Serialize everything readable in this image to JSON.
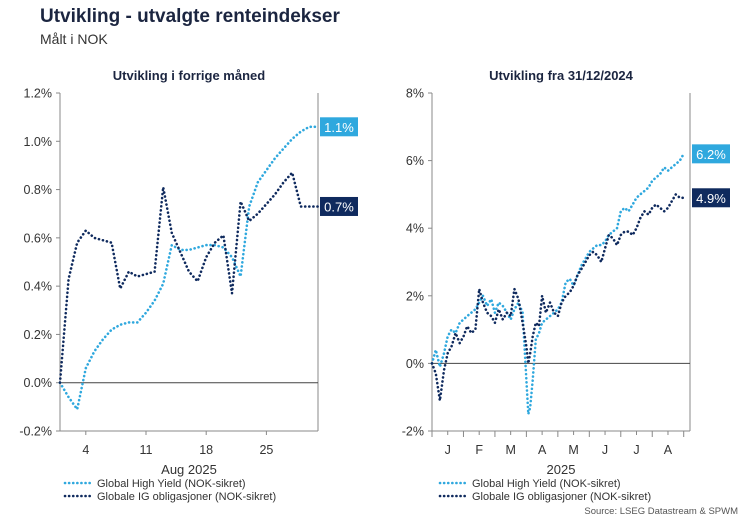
{
  "header": {
    "title": "Utvikling - utvalgte renteindekser",
    "subtitle": "Målt i NOK",
    "source": "Source: LSEG Datastream & SPWM"
  },
  "colors": {
    "high_yield": "#2fa8de",
    "ig": "#0f2a5e",
    "axis": "#555555"
  },
  "chart_data": [
    {
      "type": "line",
      "title": "Utvikling i forrige måned",
      "xlabel": "Aug 2025",
      "xticks": [
        {
          "x": 4,
          "label": "4"
        },
        {
          "x": 11,
          "label": "11"
        },
        {
          "x": 18,
          "label": "18"
        },
        {
          "x": 25,
          "label": "25"
        }
      ],
      "yticks": [
        "-0.2%",
        "0.0%",
        "0.2%",
        "0.4%",
        "0.6%",
        "0.8%",
        "1.0%",
        "1.2%"
      ],
      "xlim": [
        1,
        31
      ],
      "ylim": [
        -0.2,
        1.2
      ],
      "legend_position": "bottom",
      "series": [
        {
          "name": "Global High Yield (NOK-sikret)",
          "end_label": "1.1%",
          "x": [
            1,
            2,
            3,
            4,
            5,
            6,
            7,
            8,
            9,
            10,
            11,
            12,
            13,
            14,
            15,
            16,
            17,
            18,
            19,
            20,
            21,
            22,
            23,
            24,
            25,
            26,
            27,
            28,
            29,
            30,
            31
          ],
          "values": [
            0.0,
            -0.06,
            -0.11,
            0.06,
            0.13,
            0.18,
            0.22,
            0.24,
            0.25,
            0.25,
            0.29,
            0.34,
            0.41,
            0.57,
            0.55,
            0.55,
            0.56,
            0.57,
            0.57,
            0.56,
            0.52,
            0.44,
            0.73,
            0.83,
            0.88,
            0.93,
            0.97,
            1.01,
            1.04,
            1.06,
            1.06
          ]
        },
        {
          "name": "Globale IG obligasjoner (NOK-sikret)",
          "end_label": "0.7%",
          "x": [
            1,
            2,
            3,
            4,
            5,
            6,
            7,
            8,
            9,
            10,
            11,
            12,
            13,
            14,
            15,
            16,
            17,
            18,
            19,
            20,
            21,
            22,
            23,
            24,
            25,
            26,
            27,
            28,
            29,
            30,
            31
          ],
          "values": [
            0.0,
            0.43,
            0.58,
            0.63,
            0.6,
            0.59,
            0.58,
            0.39,
            0.46,
            0.44,
            0.45,
            0.46,
            0.81,
            0.62,
            0.54,
            0.46,
            0.42,
            0.52,
            0.58,
            0.61,
            0.37,
            0.75,
            0.67,
            0.7,
            0.74,
            0.78,
            0.83,
            0.87,
            0.73,
            0.73,
            0.73
          ]
        }
      ]
    },
    {
      "type": "line",
      "title": "Utvikling fra 31/12/2024",
      "xlabel": "2025",
      "xticks": [
        {
          "x": 0.5,
          "label": "J"
        },
        {
          "x": 1.5,
          "label": "F"
        },
        {
          "x": 2.5,
          "label": "M"
        },
        {
          "x": 3.5,
          "label": "A"
        },
        {
          "x": 4.5,
          "label": "M"
        },
        {
          "x": 5.5,
          "label": "J"
        },
        {
          "x": 6.5,
          "label": "J"
        },
        {
          "x": 7.5,
          "label": "A"
        }
      ],
      "yticks": [
        "-2%",
        "0%",
        "2%",
        "4%",
        "6%",
        "8%"
      ],
      "xlim": [
        0,
        8.2
      ],
      "ylim": [
        -2,
        8
      ],
      "legend_position": "bottom",
      "series": [
        {
          "name": "Global High Yield (NOK-sikret)",
          "end_label": "6.2%",
          "x": [
            0,
            0.12,
            0.25,
            0.38,
            0.5,
            0.62,
            0.75,
            0.88,
            1.0,
            1.12,
            1.25,
            1.38,
            1.5,
            1.62,
            1.75,
            1.88,
            2.0,
            2.12,
            2.25,
            2.38,
            2.5,
            2.62,
            2.75,
            2.88,
            3.0,
            3.06,
            3.12,
            3.2,
            3.3,
            3.4,
            3.5,
            3.62,
            3.75,
            3.88,
            4.0,
            4.12,
            4.25,
            4.38,
            4.5,
            4.62,
            4.75,
            4.88,
            5.0,
            5.12,
            5.25,
            5.38,
            5.5,
            5.62,
            5.75,
            5.88,
            6.0,
            6.12,
            6.25,
            6.38,
            6.5,
            6.62,
            6.75,
            6.88,
            7.0,
            7.12,
            7.25,
            7.38,
            7.5,
            7.62,
            7.75,
            7.88,
            8.0
          ],
          "values": [
            0,
            0.4,
            -0.1,
            0.3,
            0.8,
            1.0,
            0.9,
            1.2,
            1.3,
            1.4,
            1.5,
            1.6,
            1.8,
            2.0,
            1.7,
            1.9,
            1.5,
            1.8,
            1.7,
            1.5,
            1.3,
            1.6,
            1.8,
            1.5,
            -0.5,
            -1.5,
            -1.3,
            -0.5,
            0.7,
            0.9,
            1.2,
            1.3,
            1.4,
            1.5,
            1.6,
            1.8,
            2.4,
            2.5,
            2.3,
            2.6,
            2.9,
            3.1,
            3.3,
            3.4,
            3.5,
            3.5,
            3.6,
            3.8,
            3.9,
            4.0,
            4.5,
            4.6,
            4.5,
            4.7,
            4.9,
            5.0,
            5.1,
            5.2,
            5.4,
            5.5,
            5.6,
            5.8,
            5.7,
            5.8,
            5.9,
            6.0,
            6.2
          ]
        },
        {
          "name": "Globale IG obligasjoner (NOK-sikret)",
          "end_label": "4.9%",
          "x": [
            0,
            0.12,
            0.25,
            0.38,
            0.5,
            0.62,
            0.75,
            0.88,
            1.0,
            1.12,
            1.25,
            1.38,
            1.5,
            1.62,
            1.75,
            1.88,
            2.0,
            2.12,
            2.25,
            2.38,
            2.5,
            2.62,
            2.75,
            2.88,
            3.0,
            3.06,
            3.12,
            3.2,
            3.3,
            3.4,
            3.5,
            3.62,
            3.75,
            3.88,
            4.0,
            4.12,
            4.25,
            4.38,
            4.5,
            4.62,
            4.75,
            4.88,
            5.0,
            5.12,
            5.25,
            5.38,
            5.5,
            5.62,
            5.75,
            5.88,
            6.0,
            6.12,
            6.25,
            6.38,
            6.5,
            6.62,
            6.75,
            6.88,
            7.0,
            7.12,
            7.25,
            7.38,
            7.5,
            7.62,
            7.75,
            7.88,
            8.0
          ],
          "values": [
            0,
            -0.3,
            -1.1,
            -0.2,
            0.3,
            0.5,
            0.9,
            0.6,
            0.8,
            1.1,
            0.9,
            1.0,
            2.2,
            1.8,
            1.5,
            1.4,
            1.2,
            1.6,
            1.3,
            1.5,
            1.4,
            2.2,
            1.9,
            1.2,
            0.5,
            0.0,
            0.3,
            0.8,
            1.2,
            1.1,
            2.0,
            1.5,
            1.8,
            1.5,
            1.4,
            1.8,
            2.0,
            2.1,
            2.3,
            2.6,
            2.8,
            3.0,
            3.2,
            3.3,
            3.2,
            3.0,
            3.4,
            3.8,
            3.7,
            3.5,
            3.8,
            3.9,
            3.9,
            3.8,
            4.0,
            4.3,
            4.5,
            4.4,
            4.6,
            4.7,
            4.6,
            4.5,
            4.6,
            4.8,
            5.0,
            4.9,
            4.9
          ]
        }
      ]
    }
  ]
}
